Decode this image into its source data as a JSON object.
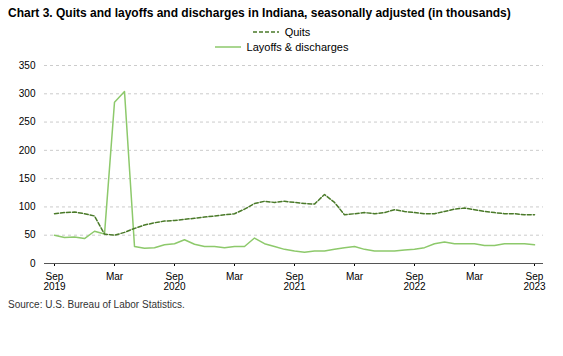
{
  "chart_data": {
    "type": "line",
    "title": "Chart 3. Quits and layoffs and discharges in Indiana, seasonally adjusted (in thousands)",
    "source": "Source: U.S. Bureau of Labor Statistics.",
    "categories": [
      "Sep\n2019",
      null,
      null,
      null,
      null,
      null,
      "Mar",
      null,
      null,
      null,
      null,
      null,
      "Sep\n2020",
      null,
      null,
      null,
      null,
      null,
      "Mar",
      null,
      null,
      null,
      null,
      null,
      "Sep\n2021",
      null,
      null,
      null,
      null,
      null,
      "Mar",
      null,
      null,
      null,
      null,
      null,
      "Sep\n2022",
      null,
      null,
      null,
      null,
      null,
      "Mar",
      null,
      null,
      null,
      null,
      null,
      "Sep\n2023"
    ],
    "series": [
      {
        "name": "Quits",
        "color": "#4a7a29",
        "line_style": "dashed",
        "values": [
          88,
          90,
          91,
          88,
          84,
          52,
          50,
          55,
          62,
          68,
          72,
          75,
          76,
          78,
          80,
          82,
          84,
          86,
          88,
          96,
          106,
          110,
          108,
          110,
          108,
          106,
          105,
          122,
          108,
          86,
          88,
          90,
          88,
          90,
          95,
          92,
          90,
          88,
          88,
          92,
          96,
          98,
          95,
          92,
          90,
          88,
          88,
          86,
          86
        ]
      },
      {
        "name": "Layoffs & discharges",
        "color": "#8dc96b",
        "line_style": "solid",
        "values": [
          50,
          46,
          47,
          44,
          57,
          52,
          285,
          304,
          30,
          27,
          28,
          33,
          35,
          42,
          34,
          30,
          30,
          28,
          30,
          30,
          45,
          35,
          30,
          25,
          22,
          20,
          22,
          22,
          25,
          28,
          30,
          25,
          22,
          22,
          22,
          24,
          25,
          28,
          35,
          38,
          35,
          35,
          35,
          32,
          32,
          35,
          35,
          35,
          33
        ]
      }
    ],
    "ylim": [
      0,
      350
    ],
    "yticks": [
      0,
      50,
      100,
      150,
      200,
      250,
      300,
      350
    ],
    "grid": true,
    "legend": "top"
  }
}
